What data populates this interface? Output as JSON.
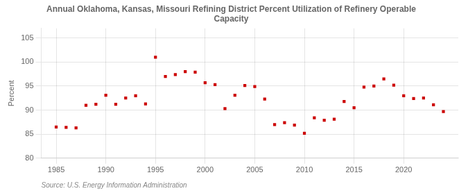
{
  "chart_data": {
    "type": "scatter",
    "title": "Annual Oklahoma, Kansas, Missouri Refining District Percent Utilization of Refinery Operable\nCapacity",
    "ylabel": "Percent",
    "annotations": [
      "Source: U.S. Energy Information Administration"
    ],
    "color": "#cc0000",
    "marker": "square",
    "grid": true,
    "xlim": [
      1983.5,
      2025.5
    ],
    "ylim": [
      80,
      107
    ],
    "xticks": [
      1985,
      1990,
      1995,
      2000,
      2005,
      2010,
      2015,
      2020
    ],
    "yticks": [
      80,
      85,
      90,
      95,
      100,
      105
    ],
    "x": [
      1985,
      1986,
      1987,
      1988,
      1989,
      1990,
      1991,
      1992,
      1993,
      1994,
      1995,
      1996,
      1997,
      1998,
      1999,
      2000,
      2001,
      2002,
      2003,
      2004,
      2005,
      2006,
      2007,
      2008,
      2009,
      2010,
      2011,
      2012,
      2013,
      2014,
      2015,
      2016,
      2017,
      2018,
      2019,
      2020,
      2021,
      2022,
      2023,
      2024
    ],
    "values": [
      86.5,
      86.4,
      86.3,
      91.0,
      91.2,
      93.1,
      91.2,
      92.5,
      93.0,
      91.3,
      101.0,
      97.0,
      97.4,
      98.0,
      97.9,
      95.7,
      95.3,
      90.3,
      93.1,
      95.1,
      94.9,
      92.3,
      87.0,
      87.4,
      86.9,
      85.2,
      88.4,
      87.9,
      88.1,
      91.8,
      90.5,
      94.8,
      95.0,
      96.5,
      95.2,
      93.0,
      92.4,
      92.5,
      91.1,
      89.7
    ]
  }
}
